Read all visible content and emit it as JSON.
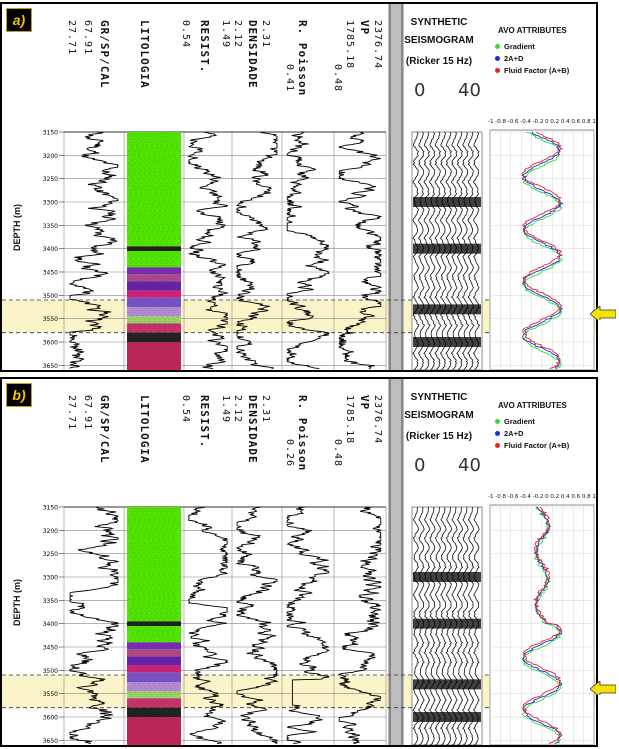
{
  "colors": {
    "highlight": "#fbf4c8",
    "green": "#52e600",
    "seis": "#111111",
    "gradient": "#2edc2e",
    "ad": "#1a2fd8",
    "ff": "#e8232a",
    "arrow": "#f6e100"
  },
  "depth_axis_label": "DEPTH (m)",
  "depth_ticks": [
    "3150",
    "3200",
    "3250",
    "3300",
    "3350",
    "3400",
    "3450",
    "3500",
    "3550",
    "3600",
    "3650"
  ],
  "seismogram": {
    "title1": "SYNTHETIC",
    "title2": "SEISMOGRAM",
    "subtitle": "(Ricker 15 Hz)",
    "tick_left": "0",
    "tick_right": "40"
  },
  "avo": {
    "title": "AVO ATTRIBUTES",
    "legend": [
      "Gradient",
      "2A+D",
      "Fluid Factor (A+B)"
    ],
    "axis_ticks": [
      "-1",
      "-0.8",
      "-0.6",
      "-0.4",
      "-0.2",
      "0",
      "0.2",
      "0.4",
      "0.6",
      "0.8",
      "1"
    ]
  },
  "panels": [
    {
      "label": "a)",
      "tracks": [
        {
          "name": "GR/SP/CAL",
          "max": "67.91",
          "min": "27.71"
        },
        {
          "name": "LITOLOGIA",
          "max": "",
          "min": ""
        },
        {
          "name": "RESIST.",
          "max": "0.54",
          "min": ""
        },
        {
          "name": "DENSIDADE",
          "max": "2.12",
          "min": "1.49"
        },
        {
          "name": "R. Poisson",
          "max": "2.31",
          "min": "0.41"
        },
        {
          "name": "VP",
          "max": "1785.18",
          "min": "0.48"
        },
        {
          "name": "",
          "max": "2376.74",
          "min": ""
        }
      ]
    },
    {
      "label": "b)",
      "tracks": [
        {
          "name": "GR/SP/CAL",
          "max": "67.91",
          "min": "27.71"
        },
        {
          "name": "LITOLOGIA",
          "max": "",
          "min": ""
        },
        {
          "name": "RESIST.",
          "max": "0.54",
          "min": ""
        },
        {
          "name": "DENSIDADE",
          "max": "2.12",
          "min": "1.49"
        },
        {
          "name": "R. Poisson",
          "max": "2.31",
          "min": "0.26"
        },
        {
          "name": "VP",
          "max": "1785.18",
          "min": "0.48"
        },
        {
          "name": "",
          "max": "2376.74",
          "min": ""
        }
      ]
    }
  ],
  "chart_data": {
    "type": "line",
    "note_units": "depth in m",
    "ylim": [
      3150,
      3660
    ],
    "highlight_zone": [
      3510,
      3580
    ],
    "series": [
      {
        "name": "Gradient",
        "panel": "a"
      },
      {
        "name": "2A+D",
        "panel": "a"
      },
      {
        "name": "Fluid Factor (A+B)",
        "panel": "a"
      },
      {
        "name": "Gradient",
        "panel": "b"
      },
      {
        "name": "2A+D",
        "panel": "b"
      },
      {
        "name": "Fluid Factor (A+B)",
        "panel": "b"
      }
    ]
  }
}
